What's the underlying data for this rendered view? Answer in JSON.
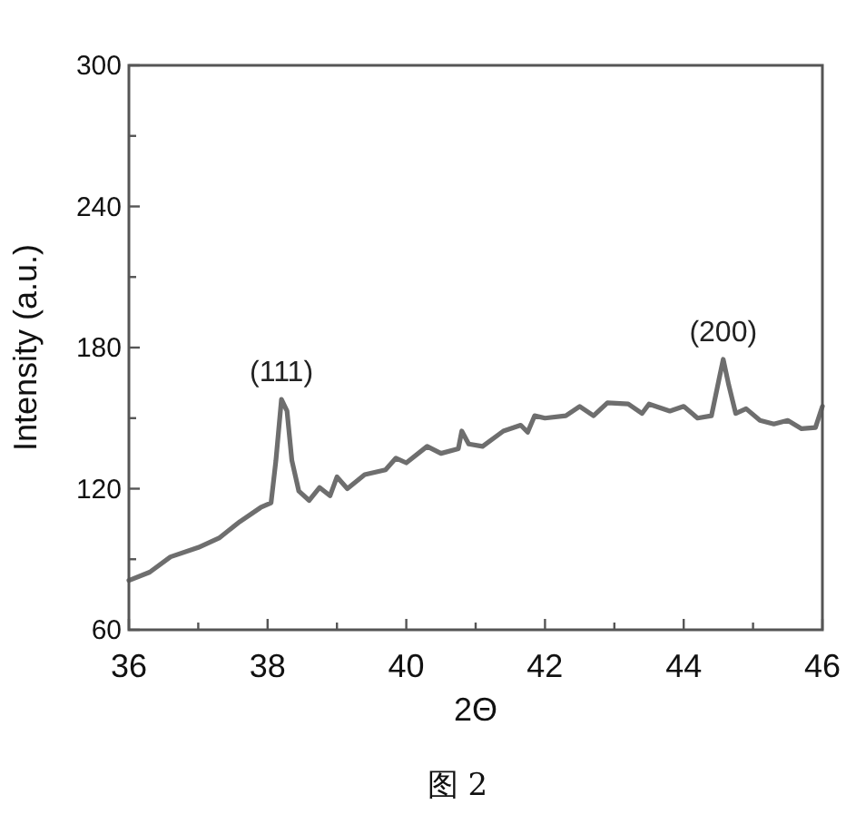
{
  "chart_data": {
    "type": "line",
    "xlabel": "2Θ",
    "ylabel": "Intensity (a.u.)",
    "x": [
      36.0,
      36.3,
      36.6,
      37.0,
      37.3,
      37.6,
      37.9,
      38.05,
      38.12,
      38.2,
      38.28,
      38.35,
      38.45,
      38.6,
      38.75,
      38.9,
      39.0,
      39.15,
      39.4,
      39.7,
      39.85,
      40.0,
      40.3,
      40.5,
      40.75,
      40.8,
      40.9,
      41.1,
      41.4,
      41.65,
      41.75,
      41.85,
      42.0,
      42.3,
      42.5,
      42.7,
      42.9,
      43.2,
      43.4,
      43.5,
      43.8,
      44.0,
      44.2,
      44.4,
      44.52,
      44.57,
      44.65,
      44.75,
      44.9,
      45.1,
      45.3,
      45.5,
      45.7,
      45.9,
      46.0
    ],
    "series": [
      {
        "color": "#6e6e6e",
        "values": [
          81,
          84.5,
          91,
          95,
          99,
          106,
          112,
          114,
          132,
          158,
          153,
          132,
          119,
          115,
          120.5,
          117,
          125,
          120,
          126,
          128,
          133,
          131,
          138,
          135,
          137,
          144.5,
          139,
          138,
          144.5,
          147,
          144,
          151,
          150,
          151,
          155,
          151,
          156.5,
          156,
          152,
          156,
          153,
          155,
          150,
          151,
          168,
          175,
          164,
          152,
          154,
          149,
          147.5,
          149,
          145.5,
          146,
          155
        ]
      }
    ],
    "xlim": [
      36,
      46
    ],
    "ylim": [
      60,
      300
    ],
    "xticks": [
      36,
      {
        "value": 37,
        "label": null
      },
      38,
      {
        "value": 39,
        "label": null
      },
      40,
      {
        "value": 41,
        "label": null
      },
      42,
      {
        "value": 43,
        "label": null
      },
      44,
      {
        "value": 45,
        "label": null
      },
      46
    ],
    "yticks": [
      60,
      {
        "value": 90,
        "label": null
      },
      120,
      {
        "value": 150,
        "label": null
      },
      180,
      {
        "value": 210,
        "label": null
      },
      240,
      {
        "value": 270,
        "label": null
      },
      300
    ],
    "grid": false,
    "marker": "none",
    "line_style": "solid",
    "annotations": [
      {
        "text": "(111)",
        "x": 38.2,
        "y": 158
      },
      {
        "text": "(200)",
        "x": 44.57,
        "y": 175
      },
      "图 2"
    ]
  }
}
